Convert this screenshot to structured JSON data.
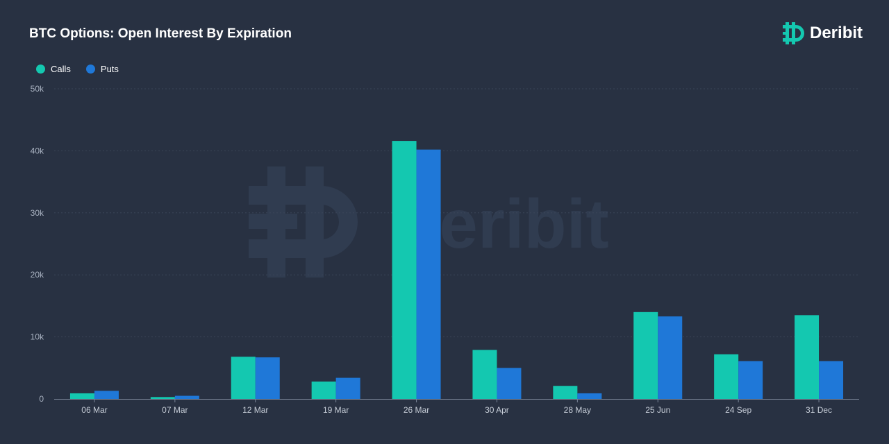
{
  "header": {
    "title": "BTC Options: Open Interest By Expiration",
    "brand": "Deribit"
  },
  "watermark": {
    "text": "Deribit"
  },
  "colors": {
    "background": "#283142",
    "calls": "#14c8b0",
    "puts": "#1f78d8",
    "grid": "#3a4558",
    "axis": "#7a8598",
    "brand": "#14c8b0",
    "watermark": "#303c50"
  },
  "legend": {
    "items": [
      {
        "label": "Calls",
        "color": "#14c8b0"
      },
      {
        "label": "Puts",
        "color": "#1f78d8"
      }
    ],
    "placement": "top-left"
  },
  "chart_data": {
    "type": "bar",
    "title": "BTC Options: Open Interest By Expiration",
    "xlabel": "",
    "ylabel": "",
    "ylim": [
      0,
      50000
    ],
    "yticks": [
      {
        "value": 0,
        "label": "0"
      },
      {
        "value": 10000,
        "label": "10k"
      },
      {
        "value": 20000,
        "label": "20k"
      },
      {
        "value": 30000,
        "label": "30k"
      },
      {
        "value": 40000,
        "label": "40k"
      },
      {
        "value": 50000,
        "label": "50k"
      }
    ],
    "grid": true,
    "categories": [
      "06 Mar",
      "07 Mar",
      "12 Mar",
      "19 Mar",
      "26 Mar",
      "30 Apr",
      "28 May",
      "25 Jun",
      "24 Sep",
      "31 Dec"
    ],
    "series": [
      {
        "name": "Calls",
        "color": "#14c8b0",
        "values": [
          900,
          300,
          6800,
          2800,
          41600,
          7900,
          2100,
          14000,
          7200,
          13500
        ]
      },
      {
        "name": "Puts",
        "color": "#1f78d8",
        "values": [
          1300,
          500,
          6700,
          3400,
          40200,
          5000,
          900,
          13300,
          6100,
          6100
        ]
      }
    ]
  }
}
